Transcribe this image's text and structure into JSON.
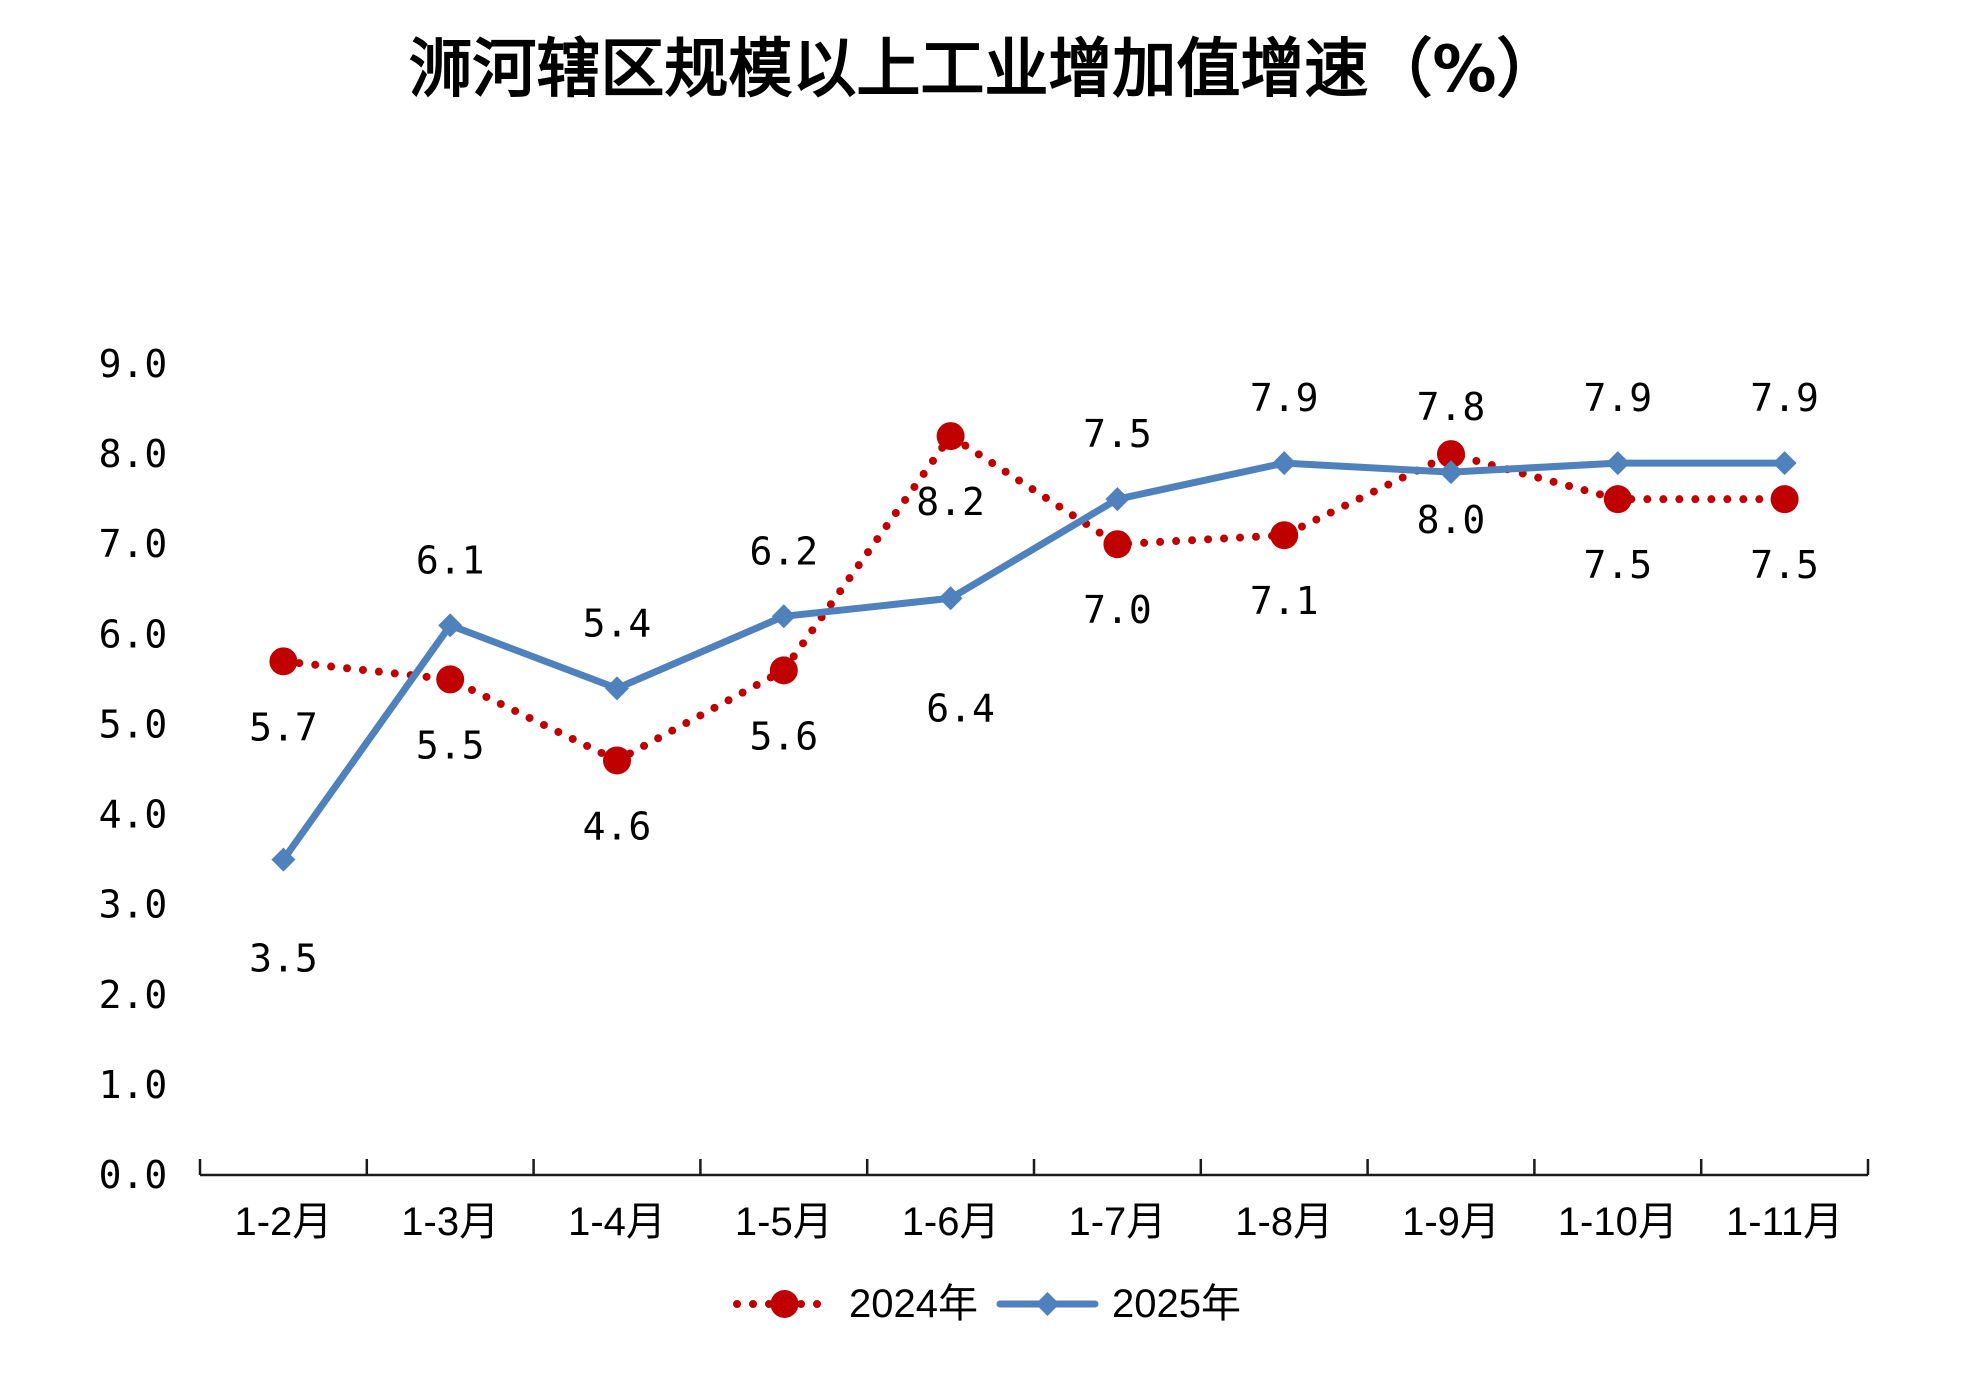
{
  "chart_data": {
    "type": "line",
    "title": "浉河辖区规模以上工业增加值增速（%）",
    "categories": [
      "1-2月",
      "1-3月",
      "1-4月",
      "1-5月",
      "1-6月",
      "1-7月",
      "1-8月",
      "1-9月",
      "1-10月",
      "1-11月"
    ],
    "y_ticks": [
      "0.0",
      "1.0",
      "2.0",
      "3.0",
      "4.0",
      "5.0",
      "6.0",
      "7.0",
      "8.0",
      "9.0"
    ],
    "ylim": [
      0,
      9
    ],
    "grid": false,
    "legend_position": "bottom",
    "series": [
      {
        "name": "2024年",
        "values": [
          5.7,
          5.5,
          4.6,
          5.6,
          8.2,
          7.0,
          7.1,
          8.0,
          7.5,
          7.5
        ],
        "labels": [
          "5.7",
          "5.5",
          "4.6",
          "5.6",
          "8.2",
          "7.0",
          "7.1",
          "8.0",
          "7.5",
          "7.5"
        ],
        "color": "#C00000",
        "line_style": "dotted",
        "marker": "circle"
      },
      {
        "name": "2025年",
        "values": [
          3.5,
          6.1,
          5.4,
          6.2,
          6.4,
          7.5,
          7.9,
          7.8,
          7.9,
          7.9
        ],
        "labels": [
          "3.5",
          "6.1",
          "5.4",
          "6.2",
          "6.4",
          "7.5",
          "7.9",
          "7.8",
          "7.9",
          "7.9"
        ],
        "color": "#4F81BD",
        "line_style": "solid",
        "marker": "diamond"
      }
    ]
  }
}
